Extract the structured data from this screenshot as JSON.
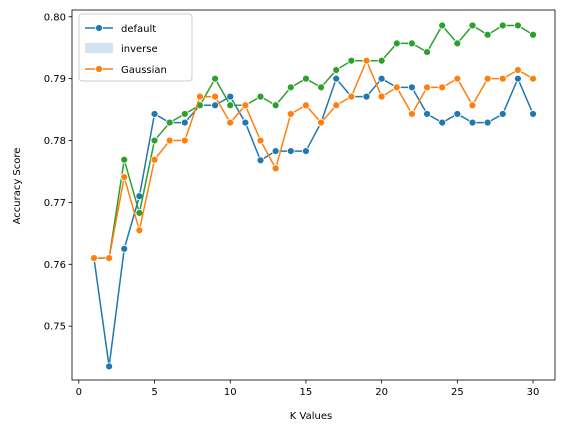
{
  "chart_data": {
    "type": "line",
    "title": "",
    "xlabel": "K Values",
    "ylabel": "Accuracy Score",
    "xlim": [
      -0.45,
      31.45
    ],
    "ylim": [
      0.7413,
      0.8011
    ],
    "xticks": [
      0,
      5,
      10,
      15,
      20,
      25,
      30
    ],
    "xtick_labels": [
      "0",
      "5",
      "10",
      "15",
      "20",
      "25",
      "30"
    ],
    "yticks": [
      0.75,
      0.76,
      0.77,
      0.78,
      0.79,
      0.8
    ],
    "ytick_labels": [
      "0.75",
      "0.76",
      "0.77",
      "0.78",
      "0.79",
      "0.80"
    ],
    "grid": false,
    "legend_position": "top-left",
    "legend": [
      {
        "label": "default",
        "kind": "line-marker",
        "color": "#1f77b4"
      },
      {
        "label": "inverse",
        "kind": "patch",
        "color": "#1f77b4"
      },
      {
        "label": "Gaussian",
        "kind": "line-marker",
        "color": "#ff7f0e"
      }
    ],
    "x": [
      1,
      2,
      3,
      4,
      5,
      6,
      7,
      8,
      9,
      10,
      11,
      12,
      13,
      14,
      15,
      16,
      17,
      18,
      19,
      20,
      21,
      22,
      23,
      24,
      25,
      26,
      27,
      28,
      29,
      30
    ],
    "series": [
      {
        "color": "#1f77b4",
        "values": [
          0.761,
          0.7435,
          0.7625,
          0.771,
          0.7843,
          0.7829,
          0.7829,
          0.7857,
          0.7857,
          0.7871,
          0.7829,
          0.7768,
          0.7783,
          0.7783,
          0.7783,
          0.7829,
          0.79,
          0.7871,
          0.7871,
          0.79,
          0.7886,
          0.7886,
          0.7843,
          0.7829,
          0.7843,
          0.7829,
          0.7829,
          0.7843,
          0.79,
          0.7843
        ]
      },
      {
        "color": "#2ca02c",
        "values": [
          0.761,
          0.761,
          0.7769,
          0.7683,
          0.78,
          0.7829,
          0.7843,
          0.7857,
          0.79,
          0.7857,
          0.7857,
          0.7871,
          0.7857,
          0.7886,
          0.79,
          0.7886,
          0.7914,
          0.7929,
          0.7929,
          0.7929,
          0.7957,
          0.7957,
          0.7943,
          0.7986,
          0.7957,
          0.7986,
          0.7971,
          0.7986,
          0.7986,
          0.7971
        ]
      },
      {
        "color": "#ff7f0e",
        "values": [
          0.761,
          0.761,
          0.7741,
          0.7655,
          0.7769,
          0.78,
          0.78,
          0.7871,
          0.7871,
          0.7829,
          0.7857,
          0.78,
          0.7755,
          0.7843,
          0.7857,
          0.7829,
          0.7857,
          0.7871,
          0.7929,
          0.7871,
          0.7886,
          0.7843,
          0.7886,
          0.7886,
          0.79,
          0.7857,
          0.79,
          0.79,
          0.7914,
          0.79
        ]
      }
    ]
  }
}
